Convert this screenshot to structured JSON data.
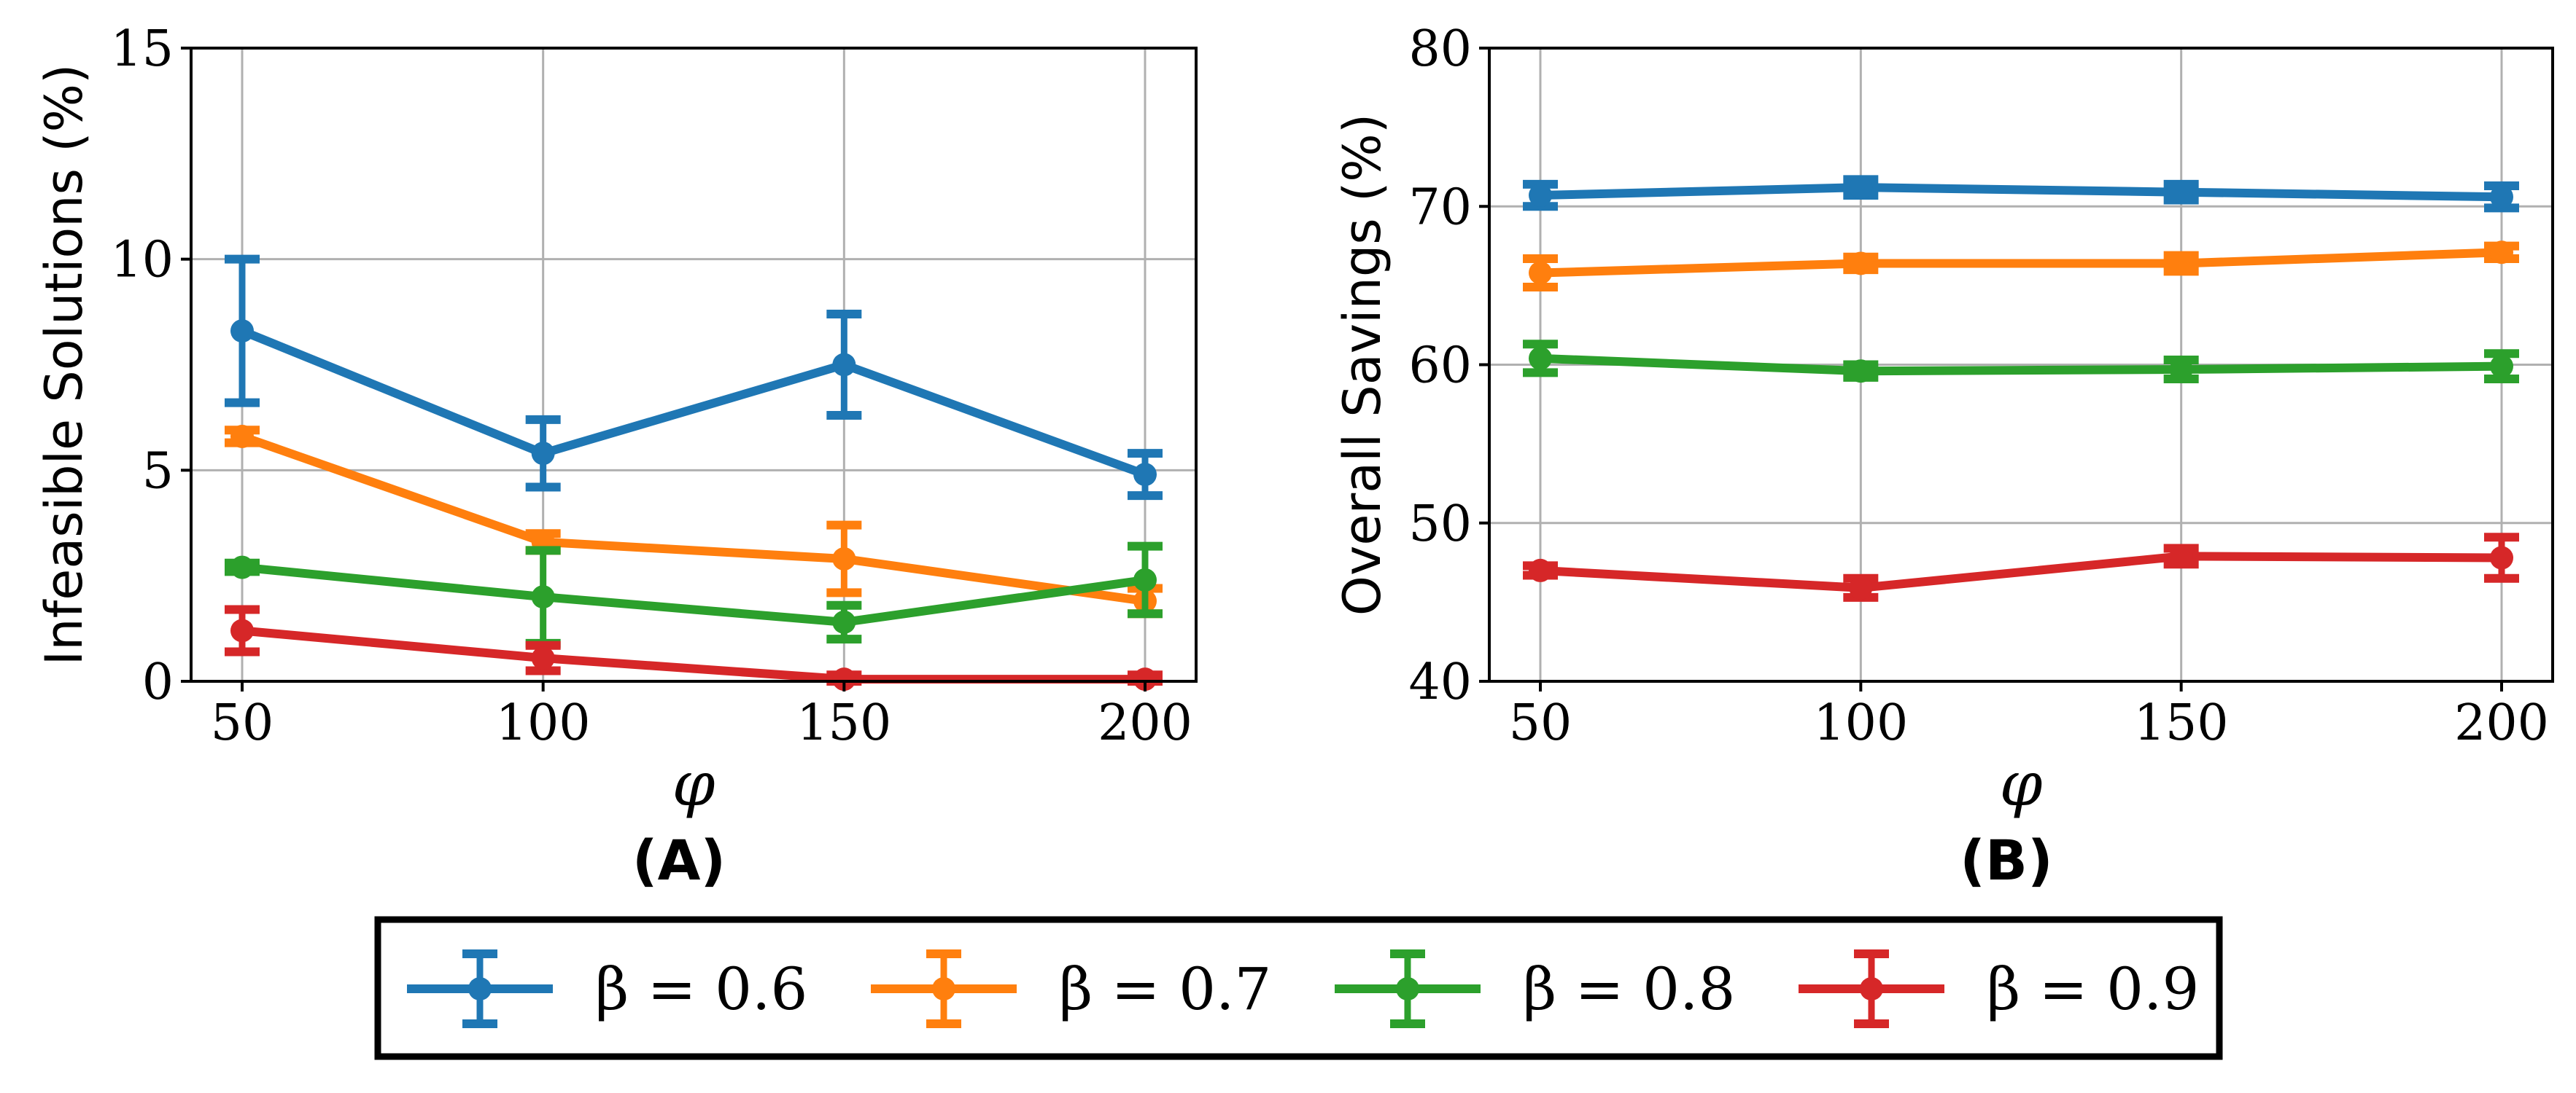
{
  "chart_data": [
    {
      "type": "line",
      "panel_label": "(A)",
      "xlabel": "φ",
      "ylabel": "Infeasible Solutions (%)",
      "x": [
        50,
        100,
        150,
        200
      ],
      "xticks": [
        "50",
        "100",
        "150",
        "200"
      ],
      "ylim": [
        0,
        15
      ],
      "yticks": [
        "0",
        "5",
        "10",
        "15"
      ],
      "grid": true,
      "series": [
        {
          "name": "β = 0.6",
          "color": "#1f77b4",
          "values": [
            8.3,
            5.4,
            7.5,
            4.9
          ],
          "errors": [
            1.7,
            0.8,
            1.2,
            0.5
          ]
        },
        {
          "name": "β = 0.7",
          "color": "#ff7f0e",
          "values": [
            5.8,
            3.3,
            2.9,
            1.9
          ],
          "errors": [
            0.15,
            0.2,
            0.8,
            0.3
          ]
        },
        {
          "name": "β = 0.8",
          "color": "#2ca02c",
          "values": [
            2.7,
            2.0,
            1.4,
            2.4
          ],
          "errors": [
            0.1,
            1.1,
            0.4,
            0.8
          ]
        },
        {
          "name": "β = 0.9",
          "color": "#d62728",
          "values": [
            1.2,
            0.55,
            0.05,
            0.05
          ],
          "errors": [
            0.5,
            0.3,
            0.1,
            0.1
          ]
        }
      ]
    },
    {
      "type": "line",
      "panel_label": "(B)",
      "xlabel": "φ",
      "ylabel": "Overall Savings (%)",
      "x": [
        50,
        100,
        150,
        200
      ],
      "xticks": [
        "50",
        "100",
        "150",
        "200"
      ],
      "ylim": [
        40,
        80
      ],
      "yticks": [
        "40",
        "50",
        "60",
        "70",
        "80"
      ],
      "grid": true,
      "series": [
        {
          "name": "β = 0.6",
          "color": "#1f77b4",
          "values": [
            70.7,
            71.2,
            70.9,
            70.6
          ],
          "errors": [
            0.7,
            0.5,
            0.5,
            0.7
          ]
        },
        {
          "name": "β = 0.7",
          "color": "#ff7f0e",
          "values": [
            65.8,
            66.4,
            66.4,
            67.1
          ],
          "errors": [
            0.9,
            0.4,
            0.5,
            0.4
          ]
        },
        {
          "name": "β = 0.8",
          "color": "#2ca02c",
          "values": [
            60.4,
            59.6,
            59.7,
            59.9
          ],
          "errors": [
            0.9,
            0.4,
            0.6,
            0.8
          ]
        },
        {
          "name": "β = 0.9",
          "color": "#d62728",
          "values": [
            47.0,
            45.9,
            47.9,
            47.8
          ],
          "errors": [
            0.3,
            0.6,
            0.5,
            1.3
          ]
        }
      ]
    }
  ],
  "legend": {
    "placement": "bottom-center",
    "entries": [
      "β = 0.6",
      "β = 0.7",
      "β = 0.8",
      "β = 0.9"
    ],
    "colors": [
      "#1f77b4",
      "#ff7f0e",
      "#2ca02c",
      "#d62728"
    ]
  }
}
